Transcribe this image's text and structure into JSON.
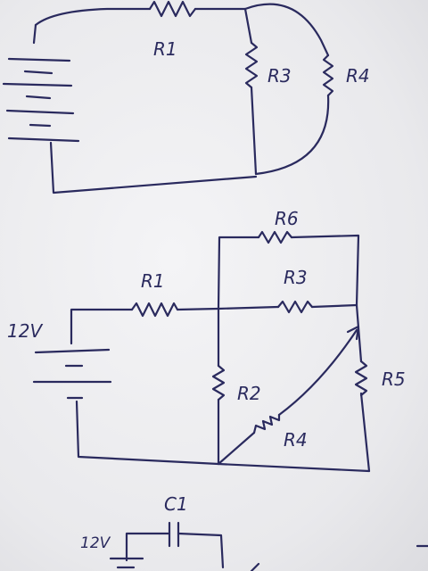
{
  "colors": {
    "ink": "#2a2a5e",
    "paper": "#eeeef0"
  },
  "circuit1": {
    "labels": {
      "r1": "R1",
      "r3": "R3",
      "r4": "R4"
    }
  },
  "circuit2": {
    "source": "12V",
    "labels": {
      "r1": "R1",
      "r2": "R2",
      "r3": "R3",
      "r4": "R4",
      "r5": "R5",
      "r6": "R6"
    }
  },
  "circuit3": {
    "source": "12V",
    "labels": {
      "c1": "C1"
    }
  }
}
